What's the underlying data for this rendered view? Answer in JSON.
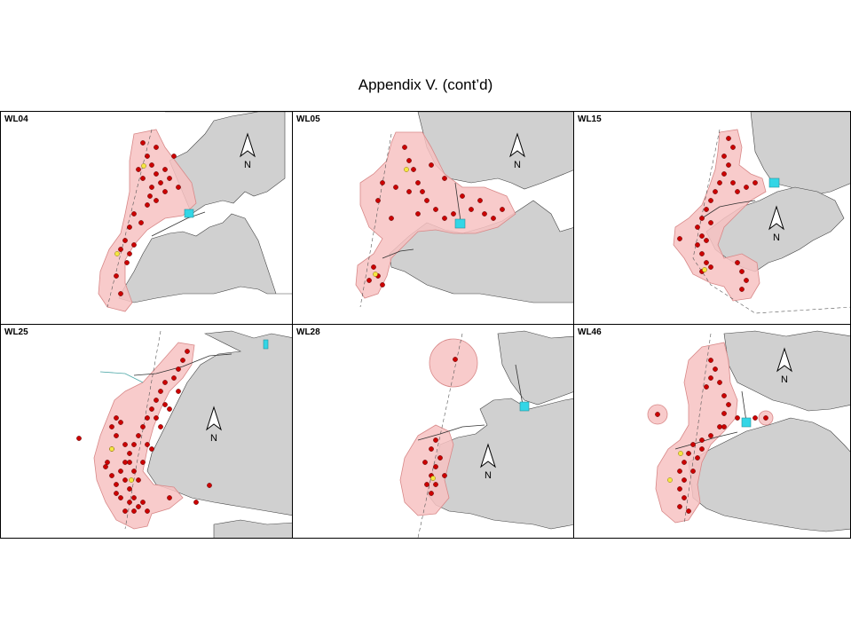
{
  "title": "Appendix V.  (cont’d)",
  "colors": {
    "land": "#d0d0d0",
    "range": "#f7c2c2",
    "range_stroke": "#d88888",
    "sighting": "#cc0000",
    "sighting_alt": "#f5e642",
    "facility": "#33d6e6"
  },
  "panels": [
    {
      "id": "WL04",
      "label": "WL04",
      "north": "N",
      "dots": [
        [
          160,
          160
        ],
        [
          165,
          175
        ],
        [
          170,
          185
        ],
        [
          175,
          195
        ],
        [
          180,
          205
        ],
        [
          160,
          200
        ],
        [
          170,
          210
        ],
        [
          185,
          215
        ],
        [
          190,
          200
        ],
        [
          175,
          225
        ],
        [
          165,
          230
        ],
        [
          150,
          240
        ],
        [
          145,
          255
        ],
        [
          140,
          270
        ],
        [
          135,
          280
        ],
        [
          145,
          285
        ],
        [
          150,
          275
        ],
        [
          130,
          310
        ],
        [
          135,
          330
        ],
        [
          175,
          165
        ],
        [
          185,
          190
        ],
        [
          195,
          175
        ],
        [
          200,
          210
        ],
        [
          155,
          190
        ],
        [
          168,
          220
        ],
        [
          158,
          250
        ],
        [
          142,
          295
        ]
      ],
      "yellow": [
        [
          161,
          186
        ],
        [
          131,
          285
        ]
      ]
    },
    {
      "id": "WL05",
      "label": "WL05",
      "north": "N",
      "dots": [
        [
          455,
          165
        ],
        [
          460,
          180
        ],
        [
          465,
          190
        ],
        [
          470,
          205
        ],
        [
          475,
          215
        ],
        [
          480,
          225
        ],
        [
          490,
          235
        ],
        [
          500,
          245
        ],
        [
          510,
          240
        ],
        [
          530,
          235
        ],
        [
          545,
          240
        ],
        [
          555,
          245
        ],
        [
          470,
          240
        ],
        [
          460,
          215
        ],
        [
          445,
          210
        ],
        [
          430,
          205
        ],
        [
          425,
          225
        ],
        [
          440,
          245
        ],
        [
          420,
          300
        ],
        [
          425,
          310
        ],
        [
          430,
          320
        ],
        [
          415,
          315
        ],
        [
          500,
          200
        ],
        [
          485,
          185
        ],
        [
          520,
          220
        ],
        [
          540,
          225
        ],
        [
          565,
          235
        ]
      ],
      "yellow": [
        [
          457,
          190
        ],
        [
          422,
          308
        ]
      ]
    },
    {
      "id": "WL15",
      "label": "WL15",
      "north": "N",
      "dots": [
        [
          820,
          155
        ],
        [
          825,
          165
        ],
        [
          815,
          175
        ],
        [
          820,
          185
        ],
        [
          815,
          195
        ],
        [
          810,
          205
        ],
        [
          805,
          215
        ],
        [
          800,
          225
        ],
        [
          795,
          235
        ],
        [
          790,
          245
        ],
        [
          785,
          255
        ],
        [
          790,
          265
        ],
        [
          785,
          275
        ],
        [
          790,
          285
        ],
        [
          795,
          295
        ],
        [
          800,
          300
        ],
        [
          790,
          305
        ],
        [
          830,
          295
        ],
        [
          835,
          305
        ],
        [
          840,
          315
        ],
        [
          835,
          325
        ],
        [
          825,
          205
        ],
        [
          830,
          215
        ],
        [
          840,
          210
        ],
        [
          850,
          205
        ],
        [
          765,
          268
        ],
        [
          800,
          250
        ],
        [
          795,
          270
        ]
      ],
      "yellow": [
        [
          793,
          303
        ]
      ]
    },
    {
      "id": "WL25",
      "label": "WL25",
      "north": "N",
      "dots": [
        [
          210,
          395
        ],
        [
          205,
          405
        ],
        [
          200,
          415
        ],
        [
          195,
          425
        ],
        [
          185,
          430
        ],
        [
          180,
          440
        ],
        [
          175,
          450
        ],
        [
          170,
          460
        ],
        [
          165,
          470
        ],
        [
          160,
          480
        ],
        [
          155,
          490
        ],
        [
          150,
          500
        ],
        [
          145,
          510
        ],
        [
          140,
          520
        ],
        [
          135,
          530
        ],
        [
          140,
          540
        ],
        [
          145,
          550
        ],
        [
          150,
          560
        ],
        [
          155,
          570
        ],
        [
          150,
          575
        ],
        [
          135,
          475
        ],
        [
          130,
          490
        ],
        [
          125,
          505
        ],
        [
          120,
          520
        ],
        [
          125,
          535
        ],
        [
          130,
          545
        ],
        [
          140,
          500
        ],
        [
          145,
          520
        ],
        [
          150,
          530
        ],
        [
          160,
          520
        ],
        [
          170,
          505
        ],
        [
          180,
          480
        ],
        [
          190,
          460
        ],
        [
          200,
          440
        ],
        [
          185,
          455
        ],
        [
          175,
          470
        ],
        [
          165,
          500
        ],
        [
          155,
          540
        ],
        [
          145,
          565
        ],
        [
          135,
          560
        ],
        [
          130,
          470
        ],
        [
          125,
          480
        ],
        [
          118,
          525
        ],
        [
          88,
          493
        ],
        [
          190,
          560
        ],
        [
          235,
          546
        ],
        [
          220,
          565
        ],
        [
          160,
          565
        ],
        [
          165,
          575
        ],
        [
          140,
          575
        ],
        [
          130,
          555
        ]
      ],
      "yellow": [
        [
          125,
          505
        ],
        [
          147,
          540
        ]
      ]
    },
    {
      "id": "WL28",
      "label": "WL28",
      "north": "N",
      "dots": [
        [
          512,
          404
        ],
        [
          490,
          495
        ],
        [
          485,
          505
        ],
        [
          495,
          515
        ],
        [
          490,
          525
        ],
        [
          485,
          535
        ],
        [
          490,
          545
        ],
        [
          485,
          555
        ],
        [
          480,
          545
        ],
        [
          500,
          535
        ],
        [
          478,
          520
        ]
      ],
      "yellow": [
        [
          487,
          538
        ]
      ]
    },
    {
      "id": "WL46",
      "label": "WL46",
      "north": "N",
      "dots": [
        [
          800,
          405
        ],
        [
          805,
          415
        ],
        [
          800,
          425
        ],
        [
          795,
          435
        ],
        [
          810,
          430
        ],
        [
          815,
          445
        ],
        [
          820,
          455
        ],
        [
          815,
          465
        ],
        [
          810,
          480
        ],
        [
          800,
          490
        ],
        [
          790,
          495
        ],
        [
          780,
          500
        ],
        [
          775,
          510
        ],
        [
          770,
          520
        ],
        [
          765,
          530
        ],
        [
          770,
          540
        ],
        [
          765,
          550
        ],
        [
          770,
          560
        ],
        [
          765,
          570
        ],
        [
          775,
          575
        ],
        [
          785,
          515
        ],
        [
          780,
          530
        ],
        [
          790,
          505
        ],
        [
          815,
          480
        ],
        [
          830,
          470
        ],
        [
          740,
          466
        ],
        [
          862,
          470
        ],
        [
          850,
          470
        ]
      ],
      "yellow": [
        [
          766,
          510
        ],
        [
          754,
          540
        ]
      ]
    }
  ]
}
